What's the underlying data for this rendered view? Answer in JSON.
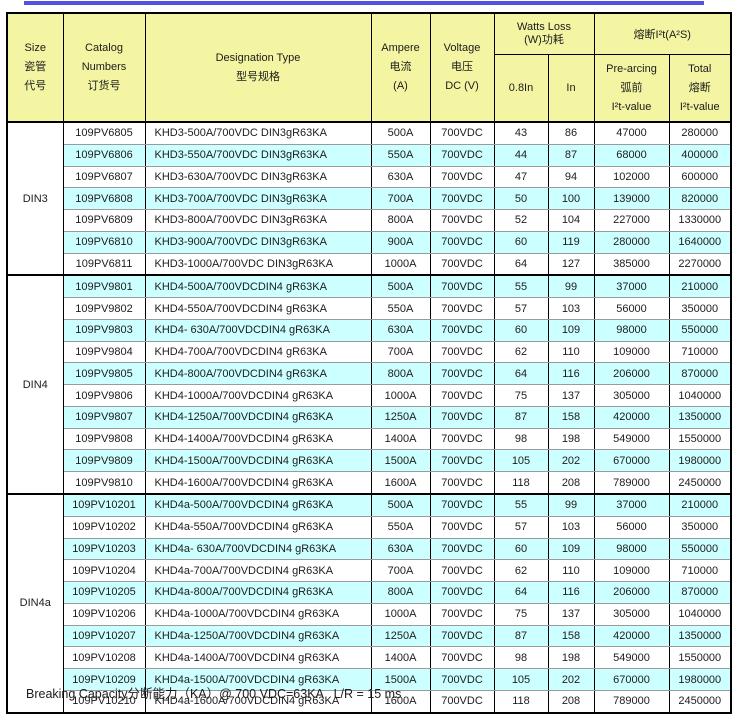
{
  "page": {
    "colors": {
      "top_rule": "#5252E2",
      "header_bg": "#F3F5A3",
      "stripe_bg": "#CCFFFF",
      "border": "#000000",
      "text": "#1C1C1C"
    },
    "footer_note": "Breaking Capacity分断能力（KA）@ 700 VDC=63KA   L/R = 15 ms"
  },
  "table": {
    "header": {
      "size": [
        "Size",
        "瓷管",
        "代号"
      ],
      "catalog": [
        "Catalog",
        "Numbers",
        "订货号"
      ],
      "designation": [
        "Designation Type",
        "型号规格"
      ],
      "ampere": [
        "Ampere",
        "电流",
        "(A)"
      ],
      "voltage": [
        "Voltage",
        "电压",
        "DC (V)"
      ],
      "watts_loss": [
        "Watts Loss",
        "(W)功耗"
      ],
      "watts_sub": [
        "0.8In",
        "In"
      ],
      "i2t_group": "熔断I²t(A²S)",
      "prearcing": [
        "Pre-arcing",
        "弧前",
        "I²t-value"
      ],
      "total": [
        "Total",
        "熔断",
        "I²t-value"
      ]
    },
    "column_names": [
      "catalog-number",
      "designation-type",
      "ampere",
      "voltage",
      "watts-08in",
      "watts-in",
      "prearcing-i2t",
      "total-i2t"
    ],
    "groups": [
      {
        "size": "DIN3",
        "rows": [
          [
            "109PV6805",
            "KHD3-500A/700VDC DIN3gR63KA",
            "500A",
            "700VDC",
            "43",
            "86",
            "47000",
            "280000"
          ],
          [
            "109PV6806",
            "KHD3-550A/700VDC DIN3gR63KA",
            "550A",
            "700VDC",
            "44",
            "87",
            "68000",
            "400000"
          ],
          [
            "109PV6807",
            "KHD3-630A/700VDC DIN3gR63KA",
            "630A",
            "700VDC",
            "47",
            "94",
            "102000",
            "600000"
          ],
          [
            "109PV6808",
            "KHD3-700A/700VDC DIN3gR63KA",
            "700A",
            "700VDC",
            "50",
            "100",
            "139000",
            "820000"
          ],
          [
            "109PV6809",
            "KHD3-800A/700VDC DIN3gR63KA",
            "800A",
            "700VDC",
            "52",
            "104",
            "227000",
            "1330000"
          ],
          [
            "109PV6810",
            "KHD3-900A/700VDC DIN3gR63KA",
            "900A",
            "700VDC",
            "60",
            "119",
            "280000",
            "1640000"
          ],
          [
            "109PV6811",
            "KHD3-1000A/700VDC DIN3gR63KA",
            "1000A",
            "700VDC",
            "64",
            "127",
            "385000",
            "2270000"
          ]
        ]
      },
      {
        "size": "DIN4",
        "rows": [
          [
            "109PV9801",
            "KHD4-500A/700VDCDIN4 gR63KA",
            "500A",
            "700VDC",
            "55",
            "99",
            "37000",
            "210000"
          ],
          [
            "109PV9802",
            "KHD4-550A/700VDCDIN4 gR63KA",
            "550A",
            "700VDC",
            "57",
            "103",
            "56000",
            "350000"
          ],
          [
            "109PV9803",
            "KHD4- 630A/700VDCDIN4 gR63KA",
            "630A",
            "700VDC",
            "60",
            "109",
            "98000",
            "550000"
          ],
          [
            "109PV9804",
            "KHD4-700A/700VDCDIN4 gR63KA",
            "700A",
            "700VDC",
            "62",
            "110",
            "109000",
            "710000"
          ],
          [
            "109PV9805",
            "KHD4-800A/700VDCDIN4 gR63KA",
            "800A",
            "700VDC",
            "64",
            "116",
            "206000",
            "870000"
          ],
          [
            "109PV9806",
            "KHD4-1000A/700VDCDIN4 gR63KA",
            "1000A",
            "700VDC",
            "75",
            "137",
            "305000",
            "1040000"
          ],
          [
            "109PV9807",
            "KHD4-1250A/700VDCDIN4 gR63KA",
            "1250A",
            "700VDC",
            "87",
            "158",
            "420000",
            "1350000"
          ],
          [
            "109PV9808",
            "KHD4-1400A/700VDCDIN4 gR63KA",
            "1400A",
            "700VDC",
            "98",
            "198",
            "549000",
            "1550000"
          ],
          [
            "109PV9809",
            "KHD4-1500A/700VDCDIN4 gR63KA",
            "1500A",
            "700VDC",
            "105",
            "202",
            "670000",
            "1980000"
          ],
          [
            "109PV9810",
            "KHD4-1600A/700VDCDIN4 gR63KA",
            "1600A",
            "700VDC",
            "118",
            "208",
            "789000",
            "2450000"
          ]
        ]
      },
      {
        "size": "DIN4a",
        "rows": [
          [
            "109PV10201",
            "KHD4a-500A/700VDCDIN4 gR63KA",
            "500A",
            "700VDC",
            "55",
            "99",
            "37000",
            "210000"
          ],
          [
            "109PV10202",
            "KHD4a-550A/700VDCDIN4 gR63KA",
            "550A",
            "700VDC",
            "57",
            "103",
            "56000",
            "350000"
          ],
          [
            "109PV10203",
            "KHD4a- 630A/700VDCDIN4 gR63KA",
            "630A",
            "700VDC",
            "60",
            "109",
            "98000",
            "550000"
          ],
          [
            "109PV10204",
            "KHD4a-700A/700VDCDIN4 gR63KA",
            "700A",
            "700VDC",
            "62",
            "110",
            "109000",
            "710000"
          ],
          [
            "109PV10205",
            "KHD4a-800A/700VDCDIN4 gR63KA",
            "800A",
            "700VDC",
            "64",
            "116",
            "206000",
            "870000"
          ],
          [
            "109PV10206",
            "KHD4a-1000A/700VDCDIN4 gR63KA",
            "1000A",
            "700VDC",
            "75",
            "137",
            "305000",
            "1040000"
          ],
          [
            "109PV10207",
            "KHD4a-1250A/700VDCDIN4 gR63KA",
            "1250A",
            "700VDC",
            "87",
            "158",
            "420000",
            "1350000"
          ],
          [
            "109PV10208",
            "KHD4a-1400A/700VDCDIN4 gR63KA",
            "1400A",
            "700VDC",
            "98",
            "198",
            "549000",
            "1550000"
          ],
          [
            "109PV10209",
            "KHD4a-1500A/700VDCDIN4 gR63KA",
            "1500A",
            "700VDC",
            "105",
            "202",
            "670000",
            "1980000"
          ],
          [
            "109PV10210",
            "KHD4a-1600A/700VDCDIN4 gR63KA",
            "1600A",
            "700VDC",
            "118",
            "208",
            "789000",
            "2450000"
          ]
        ]
      }
    ]
  }
}
